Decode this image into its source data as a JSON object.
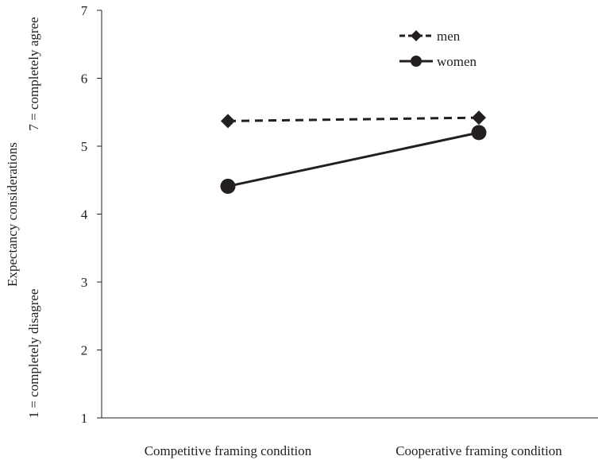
{
  "chart_data": {
    "type": "line",
    "categories": [
      "Competitive framing condition",
      "Cooperative framing condition"
    ],
    "series": [
      {
        "name": "men",
        "values": [
          5.37,
          5.42
        ],
        "line_style": "dashed",
        "marker": "diamond",
        "color": "#231f20"
      },
      {
        "name": "women",
        "values": [
          4.41,
          5.2
        ],
        "line_style": "solid",
        "marker": "circle",
        "color": "#231f20"
      }
    ],
    "ylabel_lines": [
      "Expectancy considerations",
      "1 = completely disagree",
      "7 = completely agree"
    ],
    "yticks": [
      1,
      2,
      3,
      4,
      5,
      6,
      7
    ],
    "ylim": [
      1,
      7
    ],
    "grid": false,
    "legend_position": "top-right"
  }
}
